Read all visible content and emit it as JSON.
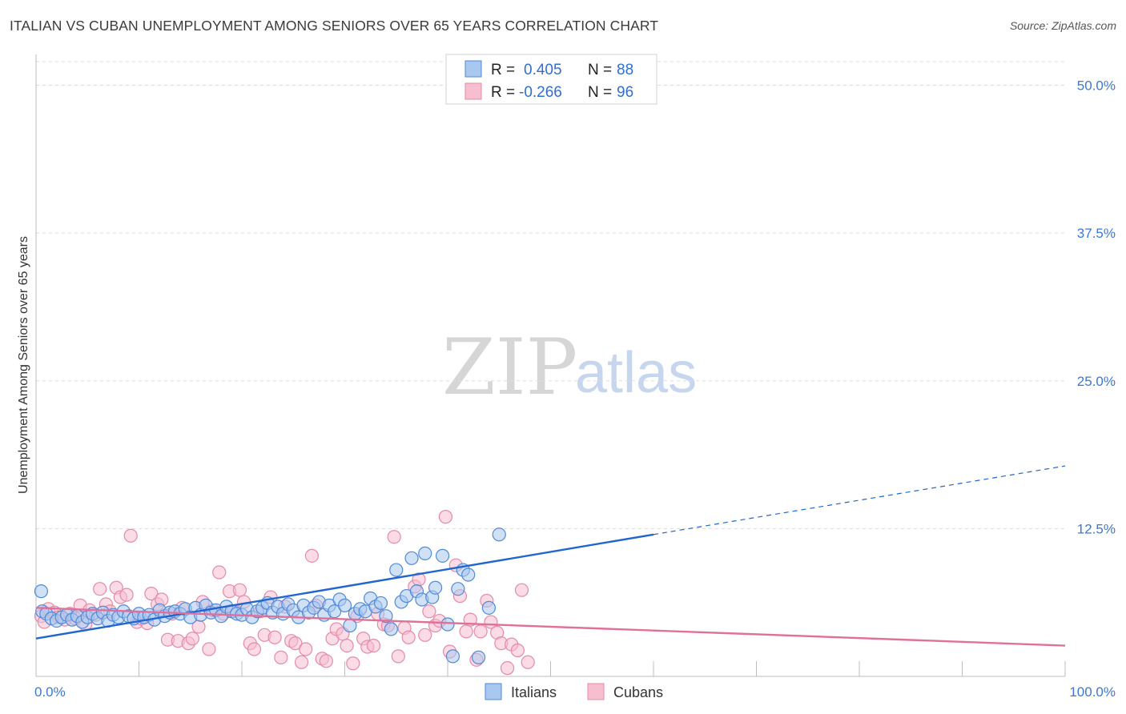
{
  "title": "ITALIAN VS CUBAN UNEMPLOYMENT AMONG SENIORS OVER 65 YEARS CORRELATION CHART",
  "source": "Source: ZipAtlas.com",
  "watermark": {
    "zip": "ZIP",
    "atlas": "atlas"
  },
  "colors": {
    "italians_fill": "#a9c8f0",
    "italians_stroke": "#4f8ad8",
    "italians_line": "#2166d0",
    "cubans_fill": "#f7bed0",
    "cubans_stroke": "#e58aa8",
    "cubans_line": "#e0709a",
    "tick_text": "#3b78d4",
    "grid": "#dddddd"
  },
  "legend": {
    "rows": [
      {
        "r_label": "R =",
        "r_value": "0.405",
        "n_label": "N =",
        "n_value": "88"
      },
      {
        "r_label": "R =",
        "r_value": "-0.266",
        "n_label": "N =",
        "n_value": "96"
      }
    ]
  },
  "chart_data": {
    "type": "scatter",
    "title": "ITALIAN VS CUBAN UNEMPLOYMENT AMONG SENIORS OVER 65 YEARS CORRELATION CHART",
    "xlabel": "",
    "ylabel": "Unemployment Among Seniors over 65 years",
    "xlim": [
      0,
      100
    ],
    "ylim": [
      0,
      52
    ],
    "y_ticks": [
      12.5,
      25.0,
      37.5,
      50.0
    ],
    "y_tick_labels": [
      "12.5%",
      "25.0%",
      "37.5%",
      "50.0%"
    ],
    "x_tick_labels": [
      "0.0%",
      "100.0%"
    ],
    "grid": true,
    "legend_position": "top-center",
    "series": [
      {
        "name": "Italians",
        "r": 0.405,
        "n": 88,
        "trend": {
          "x0": 0,
          "y0": 3.2,
          "x1": 60,
          "y1": 12.0,
          "dashed_to_x": 100,
          "dashed_to_y": 17.8
        },
        "points": [
          [
            0.5,
            7.2
          ],
          [
            0.6,
            5.5
          ],
          [
            1,
            5.3
          ],
          [
            1.5,
            4.9
          ],
          [
            2,
            4.7
          ],
          [
            2.5,
            5.0
          ],
          [
            3,
            5.2
          ],
          [
            3.5,
            4.8
          ],
          [
            4,
            5.1
          ],
          [
            4.5,
            4.6
          ],
          [
            5,
            5.0
          ],
          [
            5.5,
            5.3
          ],
          [
            6,
            4.9
          ],
          [
            6.5,
            5.4
          ],
          [
            7,
            4.7
          ],
          [
            7.5,
            5.2
          ],
          [
            8,
            5.0
          ],
          [
            8.5,
            5.5
          ],
          [
            9,
            5.1
          ],
          [
            9.5,
            4.9
          ],
          [
            10,
            5.3
          ],
          [
            10.5,
            5.0
          ],
          [
            11,
            5.2
          ],
          [
            11.5,
            4.8
          ],
          [
            12,
            5.6
          ],
          [
            12.5,
            5.1
          ],
          [
            13,
            5.4
          ],
          [
            13.5,
            5.5
          ],
          [
            14,
            5.3
          ],
          [
            14.5,
            5.7
          ],
          [
            15,
            5.0
          ],
          [
            15.5,
            5.8
          ],
          [
            16,
            5.2
          ],
          [
            16.5,
            6.0
          ],
          [
            17,
            5.4
          ],
          [
            17.5,
            5.6
          ],
          [
            18,
            5.1
          ],
          [
            18.5,
            5.9
          ],
          [
            19,
            5.5
          ],
          [
            19.5,
            5.3
          ],
          [
            20,
            5.2
          ],
          [
            20.5,
            5.7
          ],
          [
            21,
            5.0
          ],
          [
            21.5,
            5.5
          ],
          [
            22,
            5.8
          ],
          [
            22.5,
            6.2
          ],
          [
            23,
            5.4
          ],
          [
            23.5,
            5.9
          ],
          [
            24,
            5.3
          ],
          [
            24.5,
            6.1
          ],
          [
            25,
            5.6
          ],
          [
            25.5,
            5.0
          ],
          [
            26,
            6.0
          ],
          [
            26.5,
            5.4
          ],
          [
            27,
            5.8
          ],
          [
            27.5,
            6.3
          ],
          [
            28,
            5.2
          ],
          [
            28.5,
            6.0
          ],
          [
            29,
            5.5
          ],
          [
            29.5,
            6.5
          ],
          [
            30,
            6.0
          ],
          [
            30.5,
            4.3
          ],
          [
            31,
            5.3
          ],
          [
            31.5,
            5.7
          ],
          [
            32,
            5.5
          ],
          [
            32.5,
            6.6
          ],
          [
            33,
            5.9
          ],
          [
            33.5,
            6.2
          ],
          [
            34,
            5.1
          ],
          [
            34.5,
            4.0
          ],
          [
            35,
            9.0
          ],
          [
            35.5,
            6.3
          ],
          [
            36,
            6.8
          ],
          [
            36.5,
            10.0
          ],
          [
            37,
            7.2
          ],
          [
            37.5,
            6.5
          ],
          [
            37.8,
            10.4
          ],
          [
            38.5,
            6.7
          ],
          [
            38.8,
            7.5
          ],
          [
            39.5,
            10.2
          ],
          [
            40,
            4.4
          ],
          [
            40.5,
            1.7
          ],
          [
            41,
            7.4
          ],
          [
            41.5,
            9.0
          ],
          [
            42,
            8.6
          ],
          [
            43,
            1.6
          ],
          [
            44,
            5.8
          ],
          [
            45,
            12.0
          ]
        ]
      },
      {
        "name": "Cubans",
        "r": -0.266,
        "n": 96,
        "trend": {
          "x0": 0,
          "y0": 5.8,
          "x1": 100,
          "y1": 2.6
        },
        "points": [
          [
            0.5,
            5.1
          ],
          [
            0.8,
            4.6
          ],
          [
            1.2,
            5.7
          ],
          [
            1.8,
            5.4
          ],
          [
            2.2,
            5.0
          ],
          [
            2.8,
            4.8
          ],
          [
            3.3,
            5.3
          ],
          [
            3.8,
            4.9
          ],
          [
            4.3,
            6.0
          ],
          [
            4.8,
            4.4
          ],
          [
            5.2,
            5.6
          ],
          [
            5.8,
            5.2
          ],
          [
            6.2,
            7.4
          ],
          [
            6.8,
            6.1
          ],
          [
            7.2,
            5.5
          ],
          [
            7.8,
            7.5
          ],
          [
            8.2,
            6.7
          ],
          [
            8.8,
            6.9
          ],
          [
            9.2,
            11.9
          ],
          [
            9.8,
            4.6
          ],
          [
            10.2,
            4.9
          ],
          [
            10.8,
            4.5
          ],
          [
            11.2,
            7.0
          ],
          [
            11.8,
            6.1
          ],
          [
            12.2,
            6.5
          ],
          [
            12.8,
            3.1
          ],
          [
            13.2,
            5.3
          ],
          [
            13.8,
            3.0
          ],
          [
            14.2,
            5.8
          ],
          [
            14.8,
            2.8
          ],
          [
            15.2,
            3.2
          ],
          [
            15.8,
            4.2
          ],
          [
            16.2,
            6.3
          ],
          [
            16.8,
            2.3
          ],
          [
            17.2,
            5.6
          ],
          [
            17.8,
            8.8
          ],
          [
            18.2,
            5.3
          ],
          [
            18.8,
            7.2
          ],
          [
            19.2,
            5.5
          ],
          [
            19.8,
            7.3
          ],
          [
            20.2,
            6.3
          ],
          [
            20.8,
            2.8
          ],
          [
            21.2,
            2.3
          ],
          [
            21.8,
            5.5
          ],
          [
            22.2,
            3.5
          ],
          [
            22.8,
            6.7
          ],
          [
            23.2,
            3.3
          ],
          [
            23.8,
            1.6
          ],
          [
            24.2,
            5.9
          ],
          [
            24.8,
            3.0
          ],
          [
            25.2,
            2.8
          ],
          [
            25.8,
            1.2
          ],
          [
            26.2,
            2.3
          ],
          [
            26.8,
            10.2
          ],
          [
            27.2,
            6.0
          ],
          [
            27.8,
            1.5
          ],
          [
            28.2,
            1.3
          ],
          [
            28.8,
            3.2
          ],
          [
            29.2,
            4.0
          ],
          [
            29.8,
            3.6
          ],
          [
            30.2,
            2.6
          ],
          [
            30.8,
            1.1
          ],
          [
            31.2,
            5.1
          ],
          [
            31.8,
            3.2
          ],
          [
            32.2,
            2.5
          ],
          [
            32.8,
            2.6
          ],
          [
            33.2,
            5.3
          ],
          [
            33.8,
            4.4
          ],
          [
            34.2,
            4.3
          ],
          [
            34.8,
            11.8
          ],
          [
            35.2,
            1.7
          ],
          [
            35.8,
            4.1
          ],
          [
            36.2,
            3.3
          ],
          [
            36.8,
            7.6
          ],
          [
            37.2,
            8.2
          ],
          [
            37.8,
            3.5
          ],
          [
            38.2,
            5.5
          ],
          [
            38.8,
            4.3
          ],
          [
            39.2,
            4.7
          ],
          [
            39.8,
            13.5
          ],
          [
            40.2,
            2.1
          ],
          [
            40.8,
            9.4
          ],
          [
            41.2,
            6.8
          ],
          [
            41.8,
            3.8
          ],
          [
            42.2,
            4.8
          ],
          [
            42.8,
            1.4
          ],
          [
            43.2,
            3.8
          ],
          [
            43.8,
            6.4
          ],
          [
            44.2,
            4.6
          ],
          [
            44.8,
            3.7
          ],
          [
            45.2,
            2.8
          ],
          [
            45.8,
            0.7
          ],
          [
            46.2,
            2.7
          ],
          [
            46.8,
            2.2
          ],
          [
            47.2,
            7.3
          ],
          [
            47.8,
            1.2
          ]
        ]
      }
    ]
  },
  "bottom_legend": [
    "Italians",
    "Cubans"
  ]
}
